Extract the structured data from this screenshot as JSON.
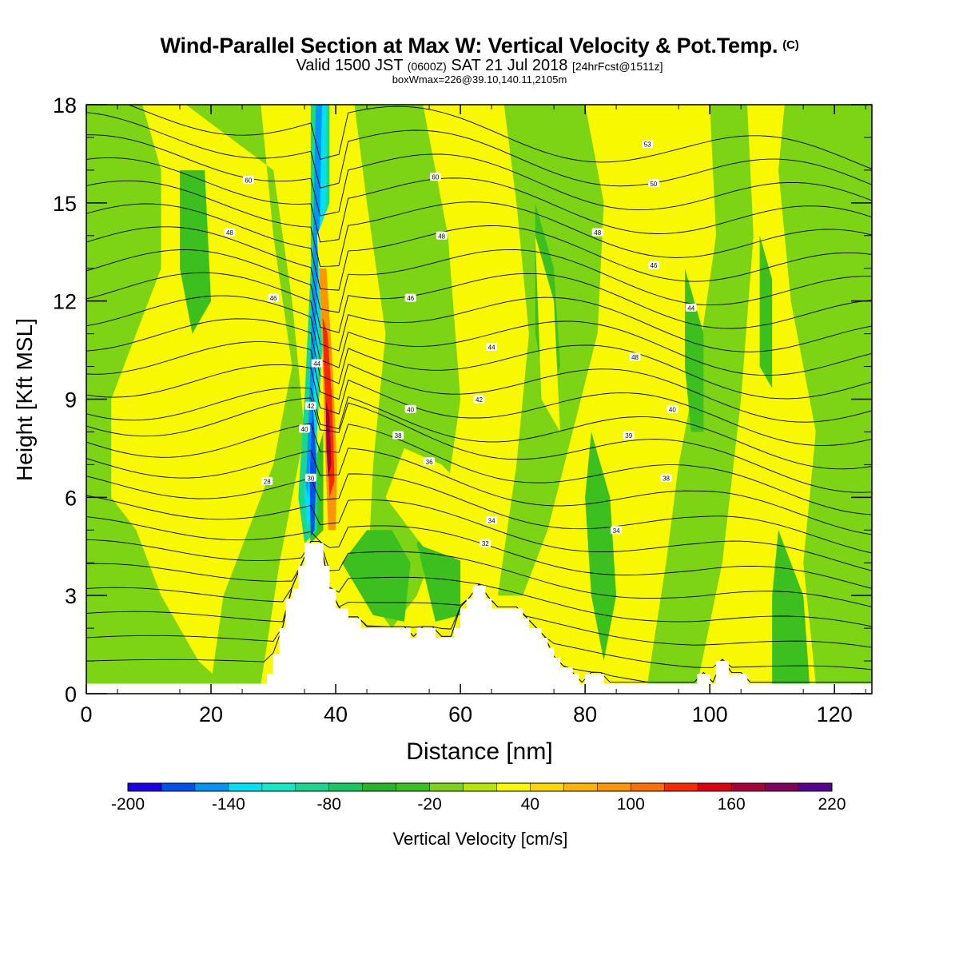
{
  "title": {
    "main": "Wind-Parallel Section at Max W: Vertical Velocity & Pot.Temp.",
    "copyright_mark": "(C)",
    "valid_line_a": "Valid 1500 JST",
    "valid_line_b": "(0600Z)",
    "valid_line_c": "SAT 21 Jul 2018",
    "valid_line_d": "[24hrFcst@1511z]",
    "box_line": "boxWmax=226@39.10,140.11,2105m"
  },
  "chart_data": {
    "type": "heatmap",
    "xlabel": "Distance [nm]",
    "ylabel": "Height [Kft MSL]",
    "xlim": [
      0,
      126
    ],
    "ylim": [
      0,
      18
    ],
    "x_ticks": [
      "0",
      "20",
      "40",
      "60",
      "80",
      "100",
      "120"
    ],
    "y_ticks": [
      "0",
      "3",
      "6",
      "9",
      "12",
      "15",
      "18"
    ],
    "colorbar": {
      "label": "Vertical Velocity [cm/s]",
      "min": -200,
      "max": 220,
      "step": 20,
      "tick_labels": [
        "-200",
        "-140",
        "-80",
        "-20",
        "40",
        "100",
        "160",
        "220"
      ],
      "colors": [
        "#1c00e6",
        "#0050f0",
        "#0095f5",
        "#00e0f5",
        "#10e8c8",
        "#18d890",
        "#14c860",
        "#28b428",
        "#3cc020",
        "#7cd414",
        "#b4e800",
        "#f8f800",
        "#fcd800",
        "#fcb400",
        "#fc9600",
        "#fc7000",
        "#f82800",
        "#e00010",
        "#a8003a",
        "#80005c",
        "#580090"
      ]
    },
    "terrain_profile_nm_kft": [
      [
        0,
        0.3
      ],
      [
        29,
        0.3
      ],
      [
        29,
        0.6
      ],
      [
        30,
        0.6
      ],
      [
        30,
        1.2
      ],
      [
        31,
        1.2
      ],
      [
        31,
        2.0
      ],
      [
        32,
        2.0
      ],
      [
        32,
        2.9
      ],
      [
        33,
        2.9
      ],
      [
        33,
        3.2
      ],
      [
        34,
        3.2
      ],
      [
        34,
        3.9
      ],
      [
        35,
        3.9
      ],
      [
        35,
        4.6
      ],
      [
        38,
        4.6
      ],
      [
        38,
        3.9
      ],
      [
        39,
        3.9
      ],
      [
        39,
        3.2
      ],
      [
        40,
        3.2
      ],
      [
        40,
        2.6
      ],
      [
        42,
        2.6
      ],
      [
        42,
        2.3
      ],
      [
        44,
        2.3
      ],
      [
        44,
        2.0
      ],
      [
        52,
        2.0
      ],
      [
        52,
        1.7
      ],
      [
        53,
        1.7
      ],
      [
        53,
        2.0
      ],
      [
        56,
        2.0
      ],
      [
        56,
        1.7
      ],
      [
        59,
        1.7
      ],
      [
        59,
        2.0
      ],
      [
        60,
        2.0
      ],
      [
        60,
        2.6
      ],
      [
        61,
        2.6
      ],
      [
        61,
        2.9
      ],
      [
        62,
        2.9
      ],
      [
        62,
        3.3
      ],
      [
        64,
        3.3
      ],
      [
        64,
        2.9
      ],
      [
        65,
        2.9
      ],
      [
        65,
        2.6
      ],
      [
        70,
        2.6
      ],
      [
        70,
        2.3
      ],
      [
        71,
        2.3
      ],
      [
        71,
        2.0
      ],
      [
        73,
        2.0
      ],
      [
        73,
        1.7
      ],
      [
        74,
        1.7
      ],
      [
        74,
        1.4
      ],
      [
        75,
        1.4
      ],
      [
        75,
        1.1
      ],
      [
        76,
        1.1
      ],
      [
        76,
        0.8
      ],
      [
        78,
        0.8
      ],
      [
        78,
        0.6
      ],
      [
        79,
        0.6
      ],
      [
        79,
        0.3
      ],
      [
        80,
        0.3
      ],
      [
        80,
        0.6
      ],
      [
        83,
        0.6
      ],
      [
        83,
        0.3
      ],
      [
        98,
        0.3
      ],
      [
        98,
        0.6
      ],
      [
        100,
        0.6
      ],
      [
        100,
        0.3
      ],
      [
        101,
        0.3
      ],
      [
        101,
        1.0
      ],
      [
        103,
        1.0
      ],
      [
        103,
        0.6
      ],
      [
        106,
        0.6
      ],
      [
        106,
        0.3
      ],
      [
        126,
        0.3
      ]
    ],
    "contour_labels": [
      {
        "text": "60",
        "x": 26,
        "y": 15.7
      },
      {
        "text": "48",
        "x": 23,
        "y": 14.1
      },
      {
        "text": "46",
        "x": 30,
        "y": 12.1
      },
      {
        "text": "28",
        "x": 29,
        "y": 6.5
      },
      {
        "text": "44",
        "x": 37,
        "y": 10.1
      },
      {
        "text": "42",
        "x": 36,
        "y": 8.8
      },
      {
        "text": "40",
        "x": 35,
        "y": 8.1
      },
      {
        "text": "30",
        "x": 36,
        "y": 6.6
      },
      {
        "text": "60",
        "x": 56,
        "y": 15.8
      },
      {
        "text": "48",
        "x": 57,
        "y": 14.0
      },
      {
        "text": "46",
        "x": 52,
        "y": 12.1
      },
      {
        "text": "40",
        "x": 52,
        "y": 8.7
      },
      {
        "text": "38",
        "x": 50,
        "y": 7.9
      },
      {
        "text": "36",
        "x": 55,
        "y": 7.1
      },
      {
        "text": "44",
        "x": 65,
        "y": 10.6
      },
      {
        "text": "42",
        "x": 63,
        "y": 9.0
      },
      {
        "text": "34",
        "x": 65,
        "y": 5.3
      },
      {
        "text": "32",
        "x": 64,
        "y": 4.6
      },
      {
        "text": "53",
        "x": 90,
        "y": 16.8
      },
      {
        "text": "50",
        "x": 91,
        "y": 15.6
      },
      {
        "text": "48",
        "x": 82,
        "y": 14.1
      },
      {
        "text": "46",
        "x": 91,
        "y": 13.1
      },
      {
        "text": "44",
        "x": 97,
        "y": 11.8
      },
      {
        "text": "48",
        "x": 88,
        "y": 10.3
      },
      {
        "text": "40",
        "x": 94,
        "y": 8.7
      },
      {
        "text": "39",
        "x": 87,
        "y": 7.9
      },
      {
        "text": "38",
        "x": 93,
        "y": 6.6
      },
      {
        "text": "34",
        "x": 85,
        "y": 5.0
      }
    ]
  }
}
